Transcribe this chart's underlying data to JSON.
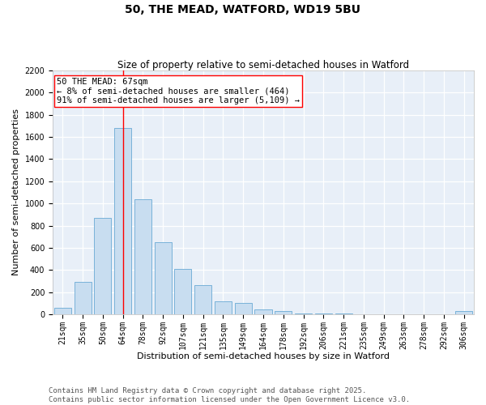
{
  "title": "50, THE MEAD, WATFORD, WD19 5BU",
  "subtitle": "Size of property relative to semi-detached houses in Watford",
  "xlabel": "Distribution of semi-detached houses by size in Watford",
  "ylabel": "Number of semi-detached properties",
  "bar_color": "#c8ddf0",
  "bar_edge_color": "#6aaad4",
  "background_color": "#e8eff8",
  "grid_color": "#ffffff",
  "categories": [
    "21sqm",
    "35sqm",
    "50sqm",
    "64sqm",
    "78sqm",
    "92sqm",
    "107sqm",
    "121sqm",
    "135sqm",
    "149sqm",
    "164sqm",
    "178sqm",
    "192sqm",
    "206sqm",
    "221sqm",
    "235sqm",
    "249sqm",
    "263sqm",
    "278sqm",
    "292sqm",
    "306sqm"
  ],
  "values": [
    60,
    290,
    870,
    1680,
    1040,
    650,
    410,
    260,
    120,
    100,
    40,
    30,
    10,
    8,
    4,
    3,
    2,
    1,
    0,
    0,
    30
  ],
  "ylim": [
    0,
    2200
  ],
  "yticks": [
    0,
    200,
    400,
    600,
    800,
    1000,
    1200,
    1400,
    1600,
    1800,
    2000,
    2200
  ],
  "red_line_x": 3.0,
  "annotation_title": "50 THE MEAD: 67sqm",
  "annotation_line1": "← 8% of semi-detached houses are smaller (464)",
  "annotation_line2": "91% of semi-detached houses are larger (5,109) →",
  "footer_line1": "Contains HM Land Registry data © Crown copyright and database right 2025.",
  "footer_line2": "Contains public sector information licensed under the Open Government Licence v3.0.",
  "title_fontsize": 10,
  "subtitle_fontsize": 8.5,
  "axis_label_fontsize": 8,
  "tick_fontsize": 7,
  "annotation_fontsize": 7.5,
  "footer_fontsize": 6.5
}
